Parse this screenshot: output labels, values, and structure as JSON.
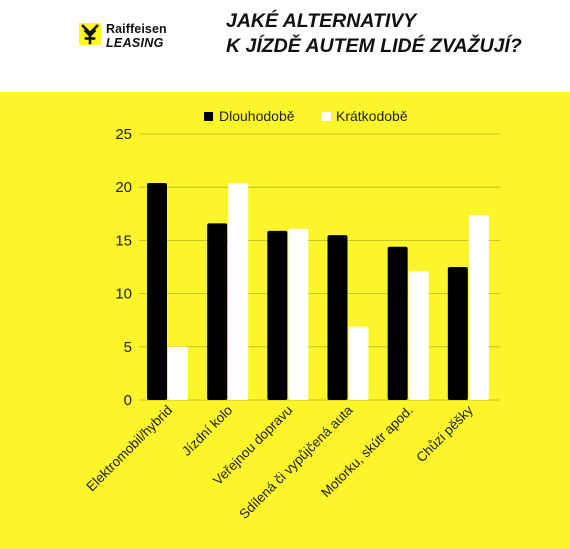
{
  "brand": {
    "line1": "Raiffeisen",
    "line2": "LEASING"
  },
  "title": {
    "line1": "JAKÉ ALTERNATIVY",
    "line2": "K JÍZDĚ AUTEM LIDÉ ZVAŽUJÍ?"
  },
  "colors": {
    "background": "#fbf52a",
    "series1": "#000000",
    "series2": "#ffffff"
  },
  "chart_data": {
    "type": "bar",
    "categories": [
      "Elektromobil/hybrid",
      "Jízdní kolo",
      "Veřejnou dopravu",
      "Sdílená či vypůjčená auta",
      "Motorku, skútr apod.",
      "Chůzi pěšky"
    ],
    "series": [
      {
        "name": "Dlouhodobě",
        "values": [
          20.4,
          16.6,
          15.9,
          15.5,
          14.4,
          12.5
        ]
      },
      {
        "name": "Krátkodobě",
        "values": [
          5.0,
          20.4,
          16.1,
          6.9,
          12.1,
          17.4
        ]
      }
    ],
    "yticks": [
      "0",
      "5",
      "10",
      "15",
      "20",
      "25"
    ],
    "ylim": [
      0,
      25
    ],
    "grid": true,
    "legend": "top-center"
  }
}
